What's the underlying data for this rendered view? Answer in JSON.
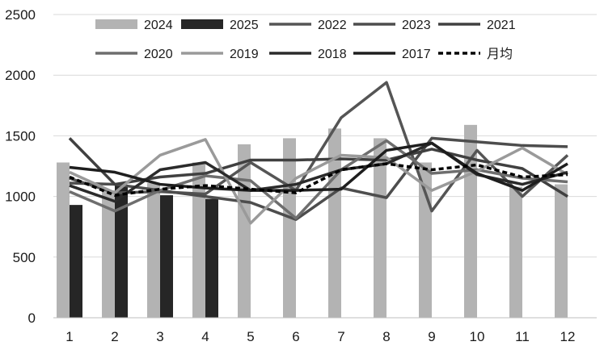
{
  "chart_data": {
    "type": "bar",
    "title": "",
    "xlabel": "",
    "ylabel": "",
    "ylim": [
      0,
      2500
    ],
    "yticks": [
      0,
      500,
      1000,
      1500,
      2000,
      2500
    ],
    "categories": [
      "1",
      "2",
      "3",
      "4",
      "5",
      "6",
      "7",
      "8",
      "9",
      "10",
      "11",
      "12"
    ],
    "grid": "horizontal",
    "legend_position": "top",
    "bar_series": [
      {
        "name": "2024",
        "color": "#b3b3b3",
        "values": [
          1280,
          1050,
          1110,
          1280,
          1430,
          1480,
          1560,
          1480,
          1280,
          1590,
          1080,
          1100
        ]
      },
      {
        "name": "2025",
        "color": "#262626",
        "values": [
          930,
          1090,
          1010,
          980,
          null,
          null,
          null,
          null,
          null,
          null,
          null,
          null
        ]
      }
    ],
    "line_series": [
      {
        "name": "2022",
        "color": "#555555",
        "dash": "",
        "values": [
          1150,
          1030,
          1040,
          1020,
          1280,
          1050,
          1650,
          1940,
          880,
          1380,
          1000,
          1340
        ]
      },
      {
        "name": "2023",
        "color": "#4d4d4d",
        "dash": "",
        "values": [
          1110,
          1100,
          1050,
          1000,
          950,
          810,
          1070,
          990,
          1480,
          1450,
          1420,
          1410
        ]
      },
      {
        "name": "2021",
        "color": "#404040",
        "dash": "",
        "values": [
          1480,
          1100,
          1160,
          1190,
          1300,
          1300,
          1310,
          1300,
          1390,
          1300,
          1230,
          1000
        ]
      },
      {
        "name": "2020",
        "color": "#6e6e6e",
        "dash": "",
        "values": [
          1040,
          880,
          1050,
          1170,
          1130,
          820,
          1220,
          1460,
          1190,
          1220,
          1150,
          1120
        ]
      },
      {
        "name": "2019",
        "color": "#9a9a9a",
        "dash": "",
        "values": [
          1200,
          1030,
          1340,
          1470,
          780,
          1150,
          1340,
          1320,
          1050,
          1210,
          1400,
          1180
        ]
      },
      {
        "name": "2018",
        "color": "#2b2b2b",
        "dash": "",
        "values": [
          1090,
          960,
          1220,
          1280,
          1050,
          1100,
          1220,
          1270,
          1440,
          1180,
          1100,
          1200
        ]
      },
      {
        "name": "2017",
        "color": "#1e1e1e",
        "dash": "",
        "values": [
          1240,
          1200,
          1100,
          1070,
          1050,
          1050,
          1060,
          1380,
          1440,
          1190,
          1050,
          1270
        ]
      },
      {
        "name": "月均",
        "color": "#000000",
        "dash": "6,4",
        "values": [
          1160,
          1010,
          1060,
          1090,
          1060,
          1030,
          1220,
          1270,
          1220,
          1260,
          1160,
          1180
        ]
      }
    ],
    "legend_rows": [
      [
        "2024",
        "2025",
        "2022",
        "2023",
        "2021"
      ],
      [
        "2020",
        "2019",
        "2018",
        "2017",
        "月均"
      ]
    ]
  }
}
